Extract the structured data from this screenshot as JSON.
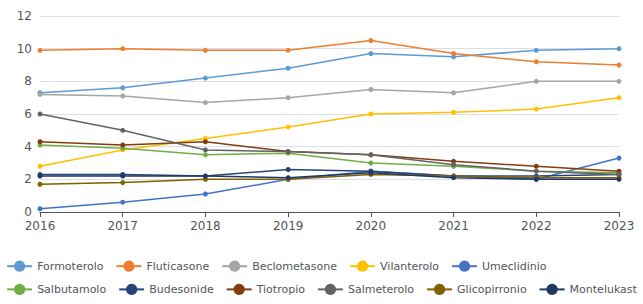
{
  "chart_data": {
    "type": "line",
    "categories": [
      "2016",
      "2017",
      "2018",
      "2019",
      "2020",
      "2021",
      "2022",
      "2023"
    ],
    "series": [
      {
        "name": "Formoterolo",
        "color": "#5B9BD5",
        "values": [
          7.3,
          7.6,
          8.2,
          8.8,
          9.7,
          9.5,
          9.9,
          10.0
        ]
      },
      {
        "name": "Fluticasone",
        "color": "#ED7D31",
        "values": [
          9.9,
          10.0,
          9.9,
          9.9,
          10.5,
          9.7,
          9.2,
          9.0
        ]
      },
      {
        "name": "Beclometasone",
        "color": "#A5A5A5",
        "values": [
          7.2,
          7.1,
          6.7,
          7.0,
          7.5,
          7.3,
          8.0,
          8.0
        ]
      },
      {
        "name": "Vilanterolo",
        "color": "#FFC000",
        "values": [
          2.8,
          3.8,
          4.5,
          5.2,
          6.0,
          6.1,
          6.3,
          7.0
        ]
      },
      {
        "name": "Umeclidinio",
        "color": "#4472C4",
        "values": [
          0.2,
          0.6,
          1.1,
          2.0,
          2.5,
          2.2,
          2.0,
          3.3
        ]
      },
      {
        "name": "Salbutamolo",
        "color": "#70AD47",
        "values": [
          4.1,
          3.9,
          3.5,
          3.6,
          3.0,
          2.8,
          2.5,
          2.4
        ]
      },
      {
        "name": "Budesonide",
        "color": "#264478",
        "values": [
          2.3,
          2.3,
          2.2,
          2.6,
          2.5,
          2.2,
          2.2,
          2.3
        ]
      },
      {
        "name": "Tiotropio",
        "color": "#843C0C",
        "values": [
          4.3,
          4.1,
          4.3,
          3.7,
          3.5,
          3.1,
          2.8,
          2.5
        ]
      },
      {
        "name": "Salmeterolo",
        "color": "#636363",
        "values": [
          6.0,
          5.0,
          3.8,
          3.7,
          3.5,
          2.9,
          2.5,
          2.3
        ]
      },
      {
        "name": "Glicopirronio",
        "color": "#806000",
        "values": [
          1.7,
          1.8,
          2.0,
          2.0,
          2.3,
          2.2,
          2.1,
          2.1
        ]
      },
      {
        "name": "Montelukast",
        "color": "#1F3864",
        "values": [
          2.2,
          2.2,
          2.2,
          2.1,
          2.4,
          2.1,
          2.0,
          2.0
        ]
      }
    ],
    "ylim": [
      0,
      12
    ],
    "yticks": [
      0,
      2,
      4,
      6,
      8,
      10,
      12
    ],
    "grid": true,
    "legend": "bottom",
    "marker": "circle"
  }
}
